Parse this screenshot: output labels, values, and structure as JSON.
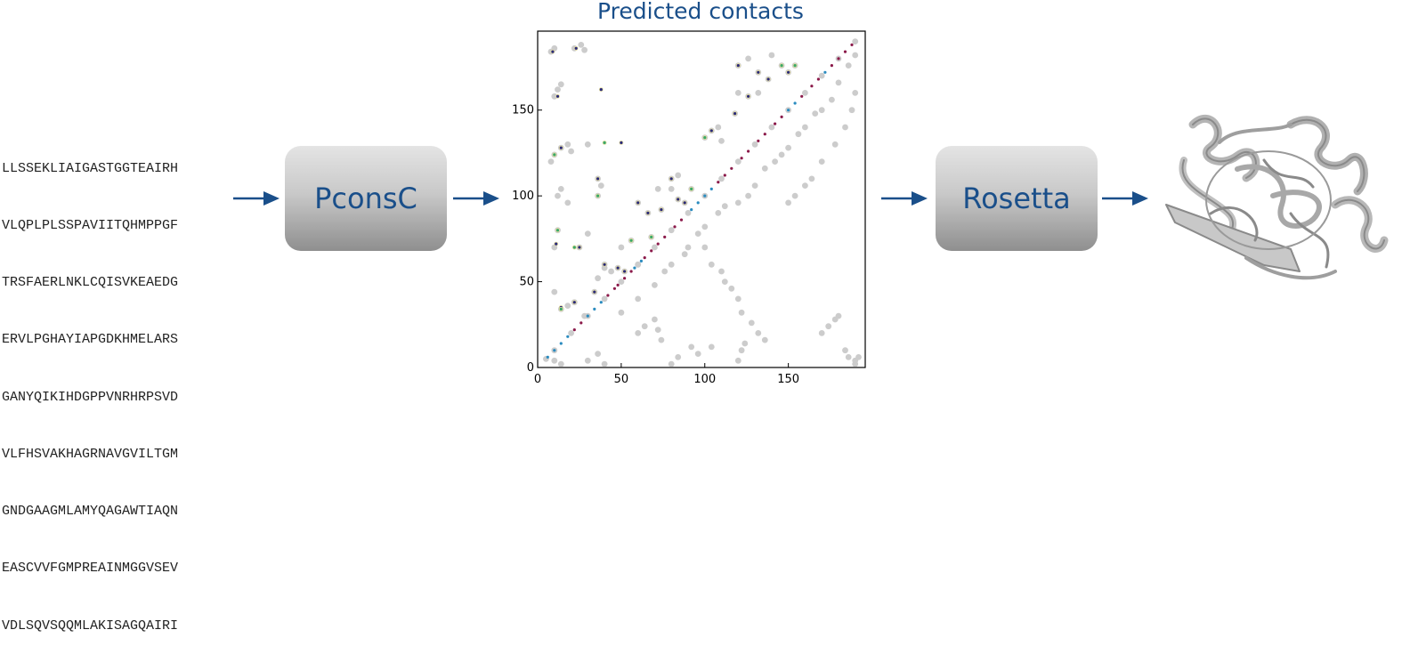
{
  "sequence": {
    "lines": [
      "LLSSEKLIAIGASTGGTEAIRH",
      "VLQPLPLSSPAVIITQHMPPGF",
      "TRSFAERLNKLCQISVKEAEDG",
      "ERVLPGHAYIAPGDKHMELARS",
      "GANYQIKIHDGPPVNRHRPSVD",
      "VLFHSVAKHAGRNAVGVILTGM",
      "GNDGAAGMLAMYQAGAWTIAQN",
      "EASCVVFGMPREAINMGGVSEV",
      "VDLSQVSQQMLAKISAGQAIRI"
    ]
  },
  "steps": {
    "pconsc_label": "PconsC",
    "rosetta_label": "Rosetta"
  },
  "colors": {
    "accent": "#1a4f8a",
    "arrow": "#1a4f8a",
    "native_contact": "#cccccc",
    "diagonal_upper": "#8b1a4a",
    "diagonal_lower": "#2a8bbf",
    "box_top": "#e4e4e4",
    "box_bottom": "#8f8f8f"
  },
  "chart_data": {
    "type": "scatter",
    "title": "Predicted contacts",
    "xlabel": "",
    "ylabel": "",
    "xlim": [
      0,
      196
    ],
    "ylim": [
      0,
      196
    ],
    "xticks": [
      0,
      50,
      100,
      150
    ],
    "yticks": [
      0,
      50,
      100,
      150
    ],
    "grid": false,
    "series": [
      {
        "color": "#cccccc",
        "points": [
          [
            5,
            5
          ],
          [
            10,
            10
          ],
          [
            20,
            20
          ],
          [
            30,
            30
          ],
          [
            40,
            40
          ],
          [
            50,
            50
          ],
          [
            60,
            60
          ],
          [
            70,
            70
          ],
          [
            80,
            80
          ],
          [
            90,
            90
          ],
          [
            100,
            100
          ],
          [
            110,
            110
          ],
          [
            120,
            120
          ],
          [
            130,
            130
          ],
          [
            140,
            140
          ],
          [
            150,
            150
          ],
          [
            160,
            160
          ],
          [
            170,
            170
          ],
          [
            180,
            180
          ],
          [
            190,
            190
          ],
          [
            8,
            184
          ],
          [
            10,
            186
          ],
          [
            22,
            186
          ],
          [
            26,
            188
          ],
          [
            28,
            185
          ],
          [
            10,
            158
          ],
          [
            12,
            162
          ],
          [
            14,
            165
          ],
          [
            8,
            120
          ],
          [
            10,
            124
          ],
          [
            14,
            128
          ],
          [
            18,
            130
          ],
          [
            20,
            126
          ],
          [
            30,
            130
          ],
          [
            12,
            100
          ],
          [
            14,
            104
          ],
          [
            18,
            96
          ],
          [
            36,
            110
          ],
          [
            38,
            106
          ],
          [
            36,
            100
          ],
          [
            12,
            80
          ],
          [
            10,
            70
          ],
          [
            10,
            44
          ],
          [
            14,
            34
          ],
          [
            18,
            36
          ],
          [
            22,
            38
          ],
          [
            28,
            30
          ],
          [
            34,
            44
          ],
          [
            36,
            52
          ],
          [
            40,
            58
          ],
          [
            44,
            56
          ],
          [
            50,
            70
          ],
          [
            56,
            74
          ],
          [
            60,
            60
          ],
          [
            68,
            76
          ],
          [
            74,
            92
          ],
          [
            80,
            104
          ],
          [
            84,
            98
          ],
          [
            88,
            96
          ],
          [
            92,
            104
          ],
          [
            100,
            134
          ],
          [
            104,
            138
          ],
          [
            108,
            140
          ],
          [
            110,
            132
          ],
          [
            118,
            148
          ],
          [
            120,
            160
          ],
          [
            126,
            158
          ],
          [
            132,
            160
          ],
          [
            138,
            168
          ],
          [
            146,
            176
          ],
          [
            150,
            172
          ],
          [
            154,
            176
          ],
          [
            120,
            176
          ],
          [
            126,
            180
          ],
          [
            132,
            172
          ],
          [
            140,
            182
          ],
          [
            25,
            70
          ],
          [
            30,
            78
          ],
          [
            40,
            60
          ],
          [
            48,
            58
          ],
          [
            52,
            56
          ],
          [
            60,
            96
          ],
          [
            66,
            90
          ],
          [
            72,
            104
          ],
          [
            80,
            110
          ],
          [
            84,
            112
          ],
          [
            50,
            32
          ],
          [
            60,
            40
          ],
          [
            70,
            48
          ],
          [
            76,
            56
          ],
          [
            80,
            60
          ],
          [
            88,
            66
          ],
          [
            90,
            70
          ],
          [
            96,
            78
          ],
          [
            100,
            82
          ],
          [
            108,
            90
          ],
          [
            112,
            94
          ],
          [
            120,
            96
          ],
          [
            126,
            100
          ],
          [
            130,
            106
          ],
          [
            136,
            116
          ],
          [
            142,
            120
          ],
          [
            146,
            124
          ],
          [
            150,
            128
          ],
          [
            156,
            136
          ],
          [
            160,
            140
          ],
          [
            166,
            148
          ],
          [
            170,
            150
          ],
          [
            176,
            156
          ],
          [
            180,
            166
          ],
          [
            186,
            176
          ],
          [
            190,
            182
          ],
          [
            100,
            70
          ],
          [
            104,
            60
          ],
          [
            110,
            56
          ],
          [
            112,
            50
          ],
          [
            116,
            46
          ],
          [
            120,
            40
          ],
          [
            122,
            32
          ],
          [
            128,
            26
          ],
          [
            132,
            20
          ],
          [
            136,
            16
          ],
          [
            60,
            20
          ],
          [
            64,
            24
          ],
          [
            70,
            28
          ],
          [
            74,
            16
          ],
          [
            72,
            22
          ],
          [
            80,
            2
          ],
          [
            84,
            6
          ],
          [
            92,
            12
          ],
          [
            96,
            8
          ],
          [
            104,
            12
          ],
          [
            170,
            20
          ],
          [
            174,
            24
          ],
          [
            178,
            28
          ],
          [
            180,
            30
          ],
          [
            184,
            10
          ],
          [
            186,
            6
          ],
          [
            190,
            4
          ],
          [
            150,
            96
          ],
          [
            154,
            100
          ],
          [
            160,
            106
          ],
          [
            164,
            110
          ],
          [
            170,
            120
          ],
          [
            178,
            130
          ],
          [
            184,
            140
          ],
          [
            188,
            150
          ],
          [
            190,
            160
          ],
          [
            10,
            4
          ],
          [
            14,
            2
          ],
          [
            30,
            4
          ],
          [
            36,
            8
          ],
          [
            40,
            2
          ],
          [
            120,
            4
          ],
          [
            122,
            10
          ],
          [
            124,
            14
          ],
          [
            190,
            2
          ],
          [
            192,
            6
          ]
        ]
      },
      {
        "color": "#8b1a4a",
        "points": [
          [
            22,
            22
          ],
          [
            26,
            26
          ],
          [
            42,
            42
          ],
          [
            46,
            46
          ],
          [
            48,
            48
          ],
          [
            52,
            52
          ],
          [
            56,
            56
          ],
          [
            64,
            64
          ],
          [
            68,
            68
          ],
          [
            72,
            72
          ],
          [
            76,
            76
          ],
          [
            82,
            82
          ],
          [
            86,
            86
          ],
          [
            108,
            108
          ],
          [
            112,
            112
          ],
          [
            116,
            116
          ],
          [
            122,
            122
          ],
          [
            126,
            126
          ],
          [
            132,
            132
          ],
          [
            136,
            136
          ],
          [
            142,
            142
          ],
          [
            146,
            146
          ],
          [
            158,
            158
          ],
          [
            164,
            164
          ],
          [
            168,
            168
          ],
          [
            176,
            176
          ],
          [
            180,
            180
          ],
          [
            184,
            184
          ],
          [
            188,
            188
          ]
        ]
      },
      {
        "color": "#2a8bbf",
        "points": [
          [
            6,
            6
          ],
          [
            10,
            10
          ],
          [
            14,
            14
          ],
          [
            18,
            18
          ],
          [
            30,
            30
          ],
          [
            34,
            34
          ],
          [
            38,
            38
          ],
          [
            58,
            58
          ],
          [
            62,
            62
          ],
          [
            92,
            92
          ],
          [
            96,
            96
          ],
          [
            100,
            100
          ],
          [
            104,
            104
          ],
          [
            150,
            150
          ],
          [
            154,
            154
          ],
          [
            172,
            172
          ]
        ]
      },
      {
        "color": "#2a2a7a",
        "points": [
          [
            9,
            184
          ],
          [
            23,
            186
          ],
          [
            38,
            162
          ],
          [
            50,
            131
          ],
          [
            12,
            158
          ],
          [
            14,
            128
          ],
          [
            36,
            110
          ],
          [
            11,
            72
          ],
          [
            14,
            35
          ],
          [
            22,
            38
          ],
          [
            34,
            44
          ],
          [
            40,
            60
          ],
          [
            52,
            56
          ],
          [
            60,
            96
          ],
          [
            74,
            92
          ],
          [
            80,
            110
          ],
          [
            84,
            98
          ],
          [
            104,
            138
          ],
          [
            118,
            148
          ],
          [
            126,
            158
          ],
          [
            138,
            168
          ],
          [
            150,
            172
          ],
          [
            132,
            172
          ],
          [
            120,
            176
          ],
          [
            25,
            70
          ],
          [
            48,
            58
          ],
          [
            66,
            90
          ],
          [
            88,
            96
          ]
        ]
      },
      {
        "color": "#3aa86a",
        "points": [
          [
            40,
            131
          ],
          [
            10,
            124
          ],
          [
            14,
            34
          ],
          [
            12,
            80
          ],
          [
            22,
            70
          ],
          [
            56,
            74
          ],
          [
            92,
            104
          ],
          [
            100,
            134
          ],
          [
            146,
            176
          ],
          [
            154,
            176
          ],
          [
            36,
            100
          ],
          [
            68,
            76
          ]
        ]
      }
    ]
  }
}
